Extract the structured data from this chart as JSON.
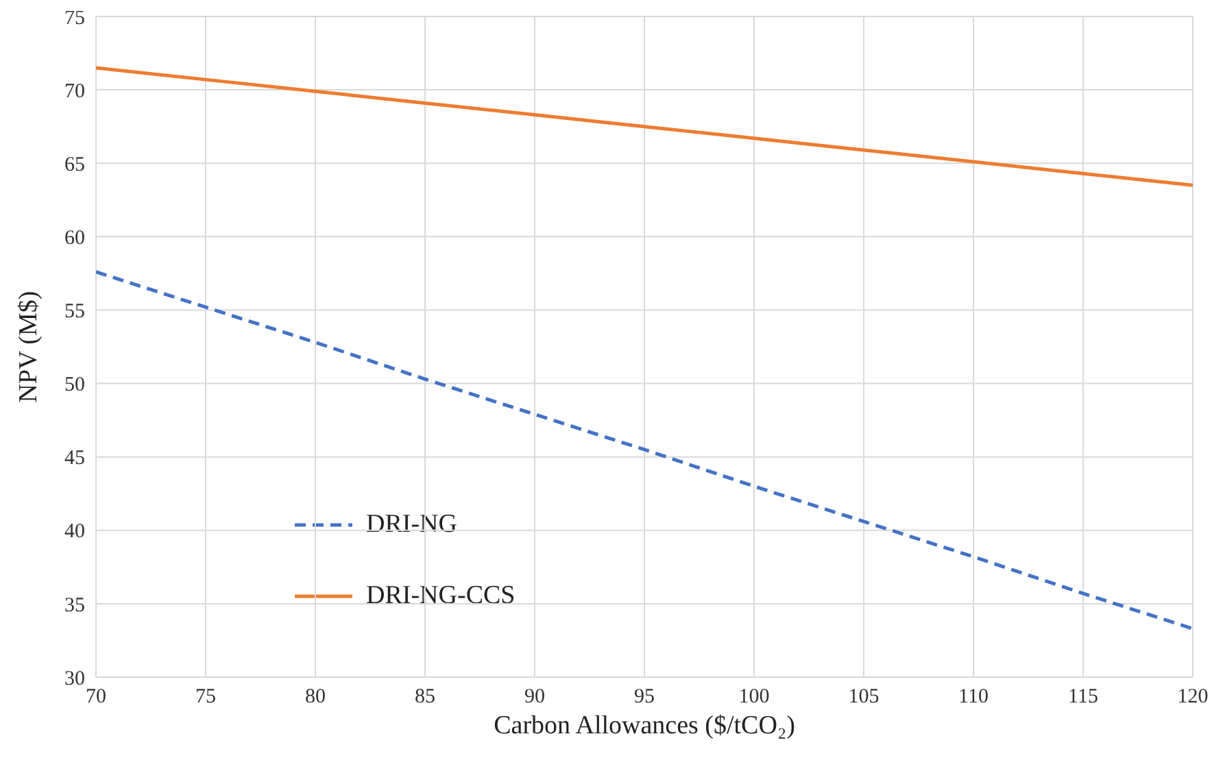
{
  "chart_data": {
    "type": "line",
    "xlabel": "Carbon Allowances ($/tCO₂)",
    "ylabel": "NPV (M$)",
    "x": [
      70,
      75,
      80,
      85,
      90,
      95,
      100,
      105,
      110,
      115,
      120
    ],
    "series": [
      {
        "name": "DRI-NG",
        "color": "#4472c4",
        "line_style": "dashed",
        "values": [
          57.6,
          55.2,
          52.8,
          50.3,
          47.9,
          45.5,
          43.0,
          40.6,
          38.2,
          35.7,
          33.3
        ]
      },
      {
        "name": "DRI-NG-CCS",
        "color": "#ed7d31",
        "line_style": "solid",
        "values": [
          71.5,
          70.7,
          69.9,
          69.1,
          68.3,
          67.5,
          66.7,
          65.9,
          65.1,
          64.3,
          63.5
        ]
      }
    ],
    "xlim": [
      70,
      120
    ],
    "xticks": [
      70,
      75,
      80,
      85,
      90,
      95,
      100,
      105,
      110,
      115,
      120
    ],
    "ylim": [
      30,
      75
    ],
    "yticks": [
      30,
      35,
      40,
      45,
      50,
      55,
      60,
      65,
      70,
      75
    ],
    "grid": true,
    "legend": "bottom left",
    "marker": "none"
  }
}
